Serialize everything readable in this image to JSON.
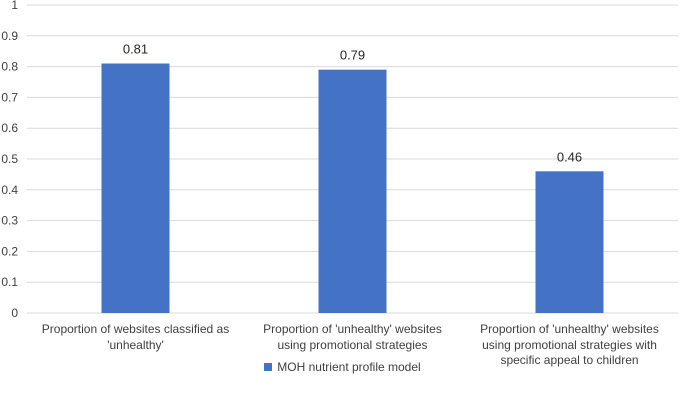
{
  "chart_data": {
    "type": "bar",
    "categories": [
      "Proportion of websites classified as 'unhealthy'",
      "Proportion of 'unhealthy' websites using promotional strategies",
      "Proportion of 'unhealthy' websites using promotional strategies with specific appeal to children"
    ],
    "series": [
      {
        "name": "MOH nutrient profile model",
        "values": [
          0.81,
          0.79,
          0.46
        ]
      }
    ],
    "data_labels": [
      "0.81",
      "0.79",
      "0.46"
    ],
    "yticks": [
      "0",
      "0.1",
      "0.2",
      "0.3",
      "0.4",
      "0.5",
      "0.6",
      "0.7",
      "0.8",
      "0.9",
      "1"
    ],
    "ylim": [
      0,
      1
    ],
    "grid": true,
    "legend_position": "bottom",
    "colors": {
      "bar": "#4472c4",
      "grid": "#d9d9d9"
    }
  }
}
